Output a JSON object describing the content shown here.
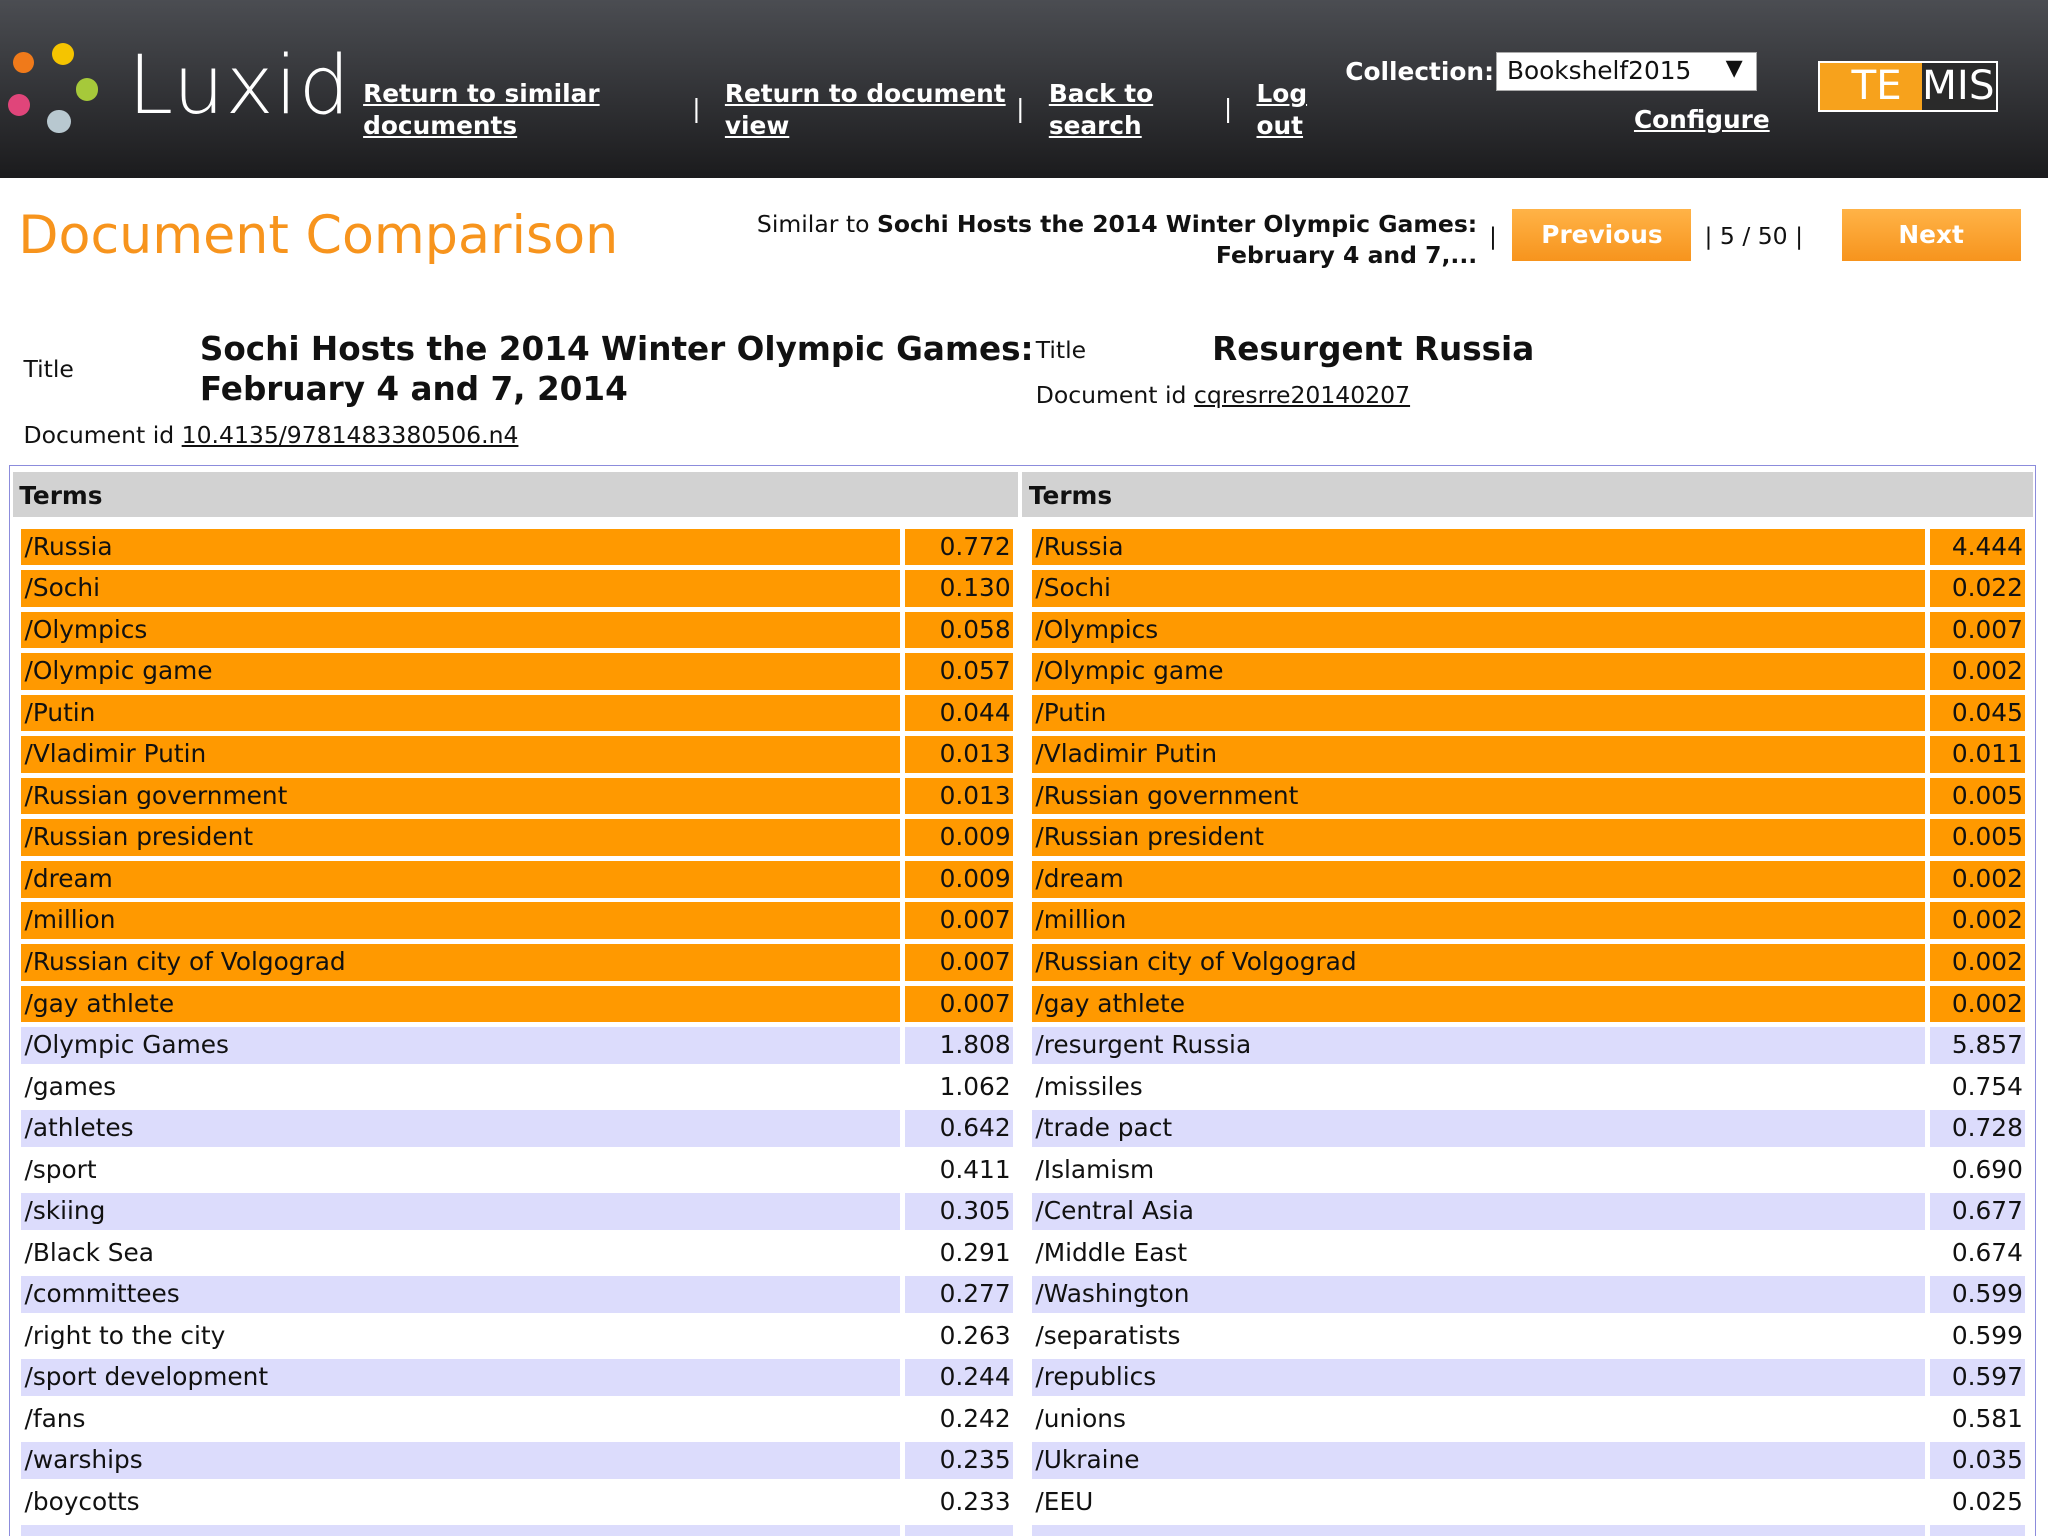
{
  "header": {
    "logo_text": "Luxid",
    "nav": [
      {
        "line1": "Return to similar",
        "line2": "documents"
      },
      {
        "line1": "Return to document",
        "line2": "view"
      },
      {
        "line1": "Back to",
        "line2": "search"
      },
      {
        "line1": "Log",
        "line2": "out"
      }
    ],
    "separator": "|",
    "collection_label": "Collection:",
    "collection_value": "Bookshelf2015",
    "configure": "Configure",
    "partner_logo": "TEMIS"
  },
  "page": {
    "title": "Document Comparison",
    "similar_prefix": "Similar to",
    "similar_title_line1": "Sochi Hosts the 2014 Winter Olympic Games:",
    "similar_title_line2": "February 4 and 7,...",
    "previous": "Previous",
    "next": "Next",
    "position": "5",
    "slash": "/",
    "total": "50"
  },
  "left_doc": {
    "title_label": "Title",
    "title_line1": "Sochi Hosts the 2014 Winter Olympic Games:",
    "title_line2": "February 4 and 7, 2014",
    "id_label": "Document id",
    "id": "10.4135/9781483380506.n4"
  },
  "right_doc": {
    "title_label": "Title",
    "title": "Resurgent Russia",
    "id_label": "Document id",
    "id": "cqresrre20140207"
  },
  "colors": {
    "shared": "#ff9900",
    "alt": "#dcdcfc",
    "accent": "#f7941d"
  },
  "table": {
    "header": "Terms",
    "rows": [
      {
        "shared": true,
        "l": "/Russia",
        "lv": "0.772",
        "r": "/Russia",
        "rv": "4.444"
      },
      {
        "shared": true,
        "l": "/Sochi",
        "lv": "0.130",
        "r": "/Sochi",
        "rv": "0.022"
      },
      {
        "shared": true,
        "l": "/Olympics",
        "lv": "0.058",
        "r": "/Olympics",
        "rv": "0.007"
      },
      {
        "shared": true,
        "l": "/Olympic game",
        "lv": "0.057",
        "r": "/Olympic game",
        "rv": "0.002"
      },
      {
        "shared": true,
        "l": "/Putin",
        "lv": "0.044",
        "r": "/Putin",
        "rv": "0.045"
      },
      {
        "shared": true,
        "l": "/Vladimir Putin",
        "lv": "0.013",
        "r": "/Vladimir Putin",
        "rv": "0.011"
      },
      {
        "shared": true,
        "l": "/Russian government",
        "lv": "0.013",
        "r": "/Russian government",
        "rv": "0.005"
      },
      {
        "shared": true,
        "l": "/Russian president",
        "lv": "0.009",
        "r": "/Russian president",
        "rv": "0.005"
      },
      {
        "shared": true,
        "l": "/dream",
        "lv": "0.009",
        "r": "/dream",
        "rv": "0.002"
      },
      {
        "shared": true,
        "l": "/million",
        "lv": "0.007",
        "r": "/million",
        "rv": "0.002"
      },
      {
        "shared": true,
        "l": "/Russian city of Volgograd",
        "lv": "0.007",
        "r": "/Russian city of Volgograd",
        "rv": "0.002"
      },
      {
        "shared": true,
        "l": "/gay athlete",
        "lv": "0.007",
        "r": "/gay athlete",
        "rv": "0.002"
      },
      {
        "shared": false,
        "l": "/Olympic Games",
        "lv": "1.808",
        "r": "/resurgent Russia",
        "rv": "5.857"
      },
      {
        "shared": false,
        "l": "/games",
        "lv": "1.062",
        "r": "/missiles",
        "rv": "0.754"
      },
      {
        "shared": false,
        "l": "/athletes",
        "lv": "0.642",
        "r": "/trade pact",
        "rv": "0.728"
      },
      {
        "shared": false,
        "l": "/sport",
        "lv": "0.411",
        "r": "/Islamism",
        "rv": "0.690"
      },
      {
        "shared": false,
        "l": "/skiing",
        "lv": "0.305",
        "r": "/Central Asia",
        "rv": "0.677"
      },
      {
        "shared": false,
        "l": "/Black Sea",
        "lv": "0.291",
        "r": "/Middle East",
        "rv": "0.674"
      },
      {
        "shared": false,
        "l": "/committees",
        "lv": "0.277",
        "r": "/Washington",
        "rv": "0.599"
      },
      {
        "shared": false,
        "l": "/right to the city",
        "lv": "0.263",
        "r": "/separatists",
        "rv": "0.599"
      },
      {
        "shared": false,
        "l": "/sport development",
        "lv": "0.244",
        "r": "/republics",
        "rv": "0.597"
      },
      {
        "shared": false,
        "l": "/fans",
        "lv": "0.242",
        "r": "/unions",
        "rv": "0.581"
      },
      {
        "shared": false,
        "l": "/warships",
        "lv": "0.235",
        "r": "/Ukraine",
        "rv": "0.035"
      },
      {
        "shared": false,
        "l": "/boycotts",
        "lv": "0.233",
        "r": "/EEU",
        "rv": "0.025"
      }
    ]
  }
}
